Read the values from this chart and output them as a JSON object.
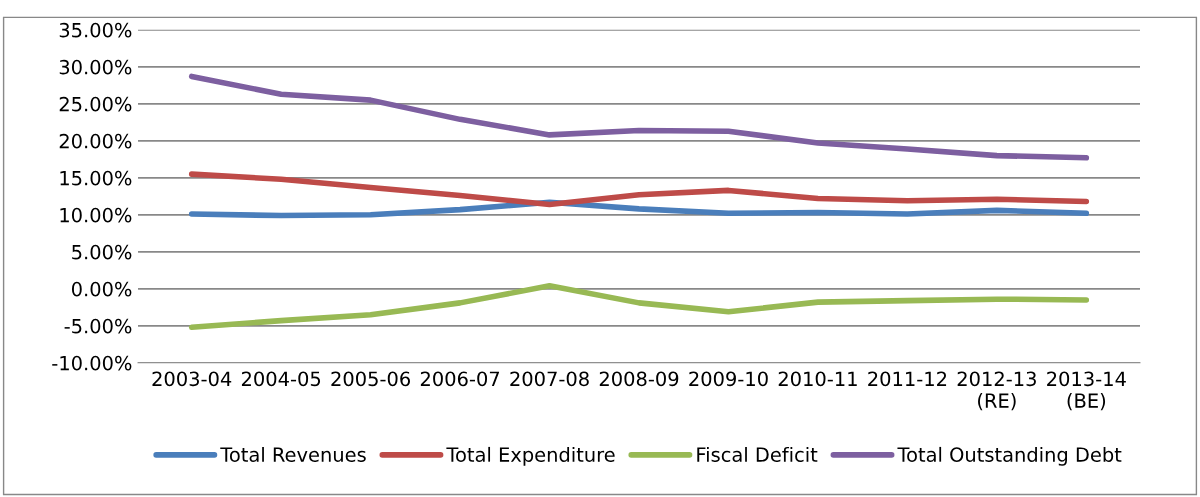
{
  "chart_data": {
    "type": "line",
    "categories": [
      "2003-04",
      "2004-05",
      "2005-06",
      "2006-07",
      "2007-08",
      "2008-09",
      "2009-10",
      "2010-11",
      "2011-12",
      "2012-13\n(RE)",
      "2013-14\n(BE)"
    ],
    "series": [
      {
        "name": "Total Revenues",
        "color": "#4a7ebb",
        "values": [
          10.1,
          9.9,
          10.0,
          10.7,
          11.7,
          10.8,
          10.2,
          10.3,
          10.1,
          10.6,
          10.2
        ]
      },
      {
        "name": "Total Expenditure",
        "color": "#be4b48",
        "values": [
          15.5,
          14.8,
          13.7,
          12.6,
          11.4,
          12.7,
          13.3,
          12.2,
          11.9,
          12.1,
          11.8
        ]
      },
      {
        "name": "Fiscal Deficit",
        "color": "#98b954",
        "values": [
          -5.2,
          -4.3,
          -3.5,
          -1.9,
          0.4,
          -1.9,
          -3.1,
          -1.8,
          -1.6,
          -1.4,
          -1.5
        ]
      },
      {
        "name": "Total Outstanding Debt",
        "color": "#7d5fa0",
        "values": [
          28.7,
          26.3,
          25.5,
          22.9,
          20.8,
          21.4,
          21.3,
          19.7,
          18.9,
          18.0,
          17.7
        ]
      }
    ],
    "ylim": [
      -10,
      35
    ],
    "yticks": [
      {
        "value": -10,
        "label": "-10.00%"
      },
      {
        "value": -5,
        "label": "-5.00%"
      },
      {
        "value": 0,
        "label": "0.00%"
      },
      {
        "value": 5,
        "label": "5.00%"
      },
      {
        "value": 10,
        "label": "10.00%"
      },
      {
        "value": 15,
        "label": "15.00%"
      },
      {
        "value": 20,
        "label": "20.00%"
      },
      {
        "value": 25,
        "label": "25.00%"
      },
      {
        "value": 30,
        "label": "30.00%"
      },
      {
        "value": 35,
        "label": "35.00%"
      }
    ],
    "grid": "y",
    "legend": "bottom",
    "marker": "none",
    "line_style": "solid"
  }
}
